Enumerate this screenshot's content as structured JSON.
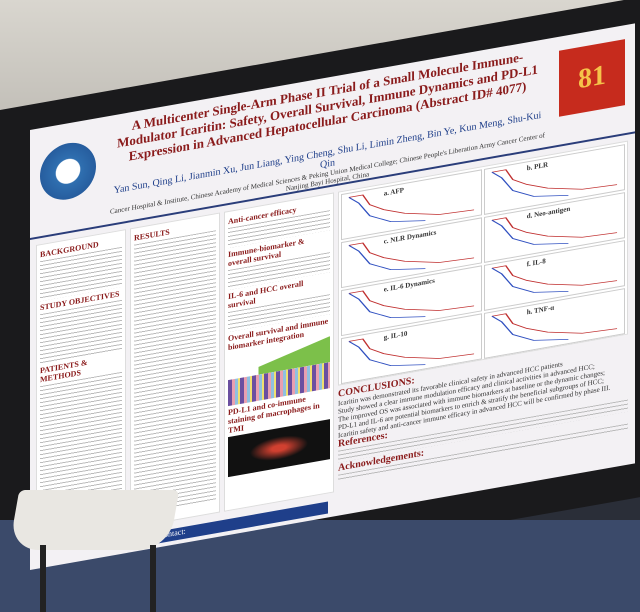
{
  "poster": {
    "title": "A Multicenter Single-Arm Phase II Trial of a Small Molecule Immune-Modulator Icaritin: Safety, Overall Survival, Immune Dynamics and PD-L1 Expression in Advanced Hepatocellular Carcinoma (Abstract ID# 4077)",
    "authors": "Yan Sun, Qing Li, Jianmin Xu, Jun Liang, Ying Cheng, Shu Li, Limin Zheng, Bin Ye, Kun Meng, Shu-Kui Qin",
    "affiliation": "Cancer Hospital & Institute, Chinese Academy of Medical Sciences & Peking Union Medical College; Chinese People's Liberation Army Cancer Center of Nanjing Bayi Hospital, China",
    "logo_right": "81",
    "left_sections": [
      "BACKGROUND",
      "STUDY OBJECTIVES",
      "PATIENTS & METHODS"
    ],
    "results_heading": "RESULTS",
    "middle_sections": [
      "Anti-cancer efficacy",
      "Immune-biomarker & overall survival",
      "IL-6 and HCC overall survival",
      "Overall survival and immune biomarker integration",
      "PD-L1 and co-immune staining of macrophages in TMI"
    ],
    "charts": [
      "a. AFP",
      "b. PLR",
      "c. NLR Dynamics",
      "d. Neo-antigen",
      "e. IL-6 Dynamics",
      "f. IL-8",
      "g. IL-10",
      "h. TNF-α"
    ],
    "conclusions_heading": "CONCLUSIONS:",
    "conclusions": [
      "Icaritin was demonstrated its favorable clinical safety in advanced HCC patients",
      "Study showed a clear immune modulation efficacy and clinical activities in advanced HCC;",
      "The improved OS was associated with immune biomarkers at baseline or the dynamic changes;",
      "PD-L1 and IL-6 are potential biomarkers to enrich & stratify the beneficial subgroups of HCC;",
      "Icaritin safety and anti-cancer immune efficacy in advanced HCC will be confirmed by phase III."
    ],
    "references_heading": "References:",
    "acknowledgements_heading": "Acknowledgements:",
    "contact_label": "Please contact:"
  }
}
